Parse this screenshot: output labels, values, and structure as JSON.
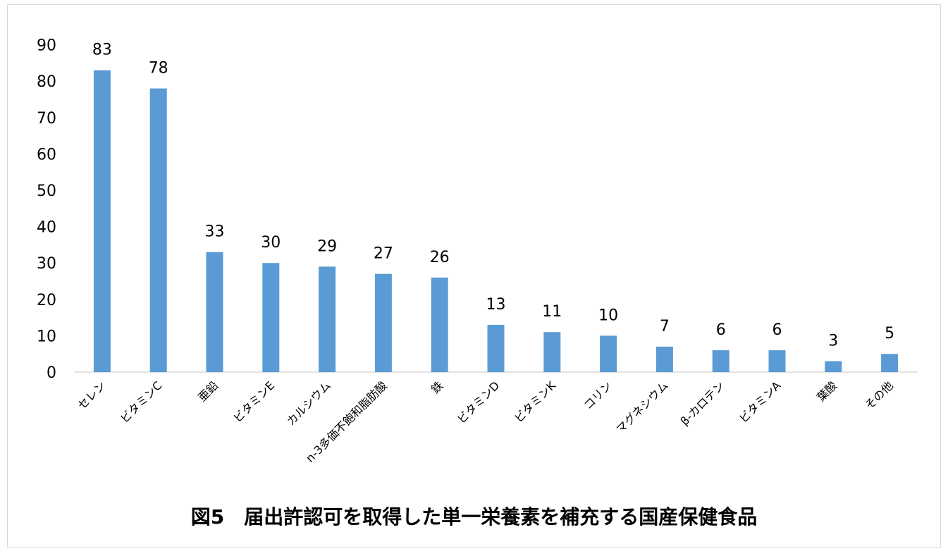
{
  "chart_data": {
    "type": "bar",
    "title": "図5　届出許認可を取得した単一栄養素を補充する国産保健食品",
    "xlabel": "",
    "ylabel": "",
    "ylim": [
      0,
      90
    ],
    "yticks": [
      0,
      10,
      20,
      30,
      40,
      50,
      60,
      70,
      80,
      90
    ],
    "grid": false,
    "legend": "none",
    "bar_color": "#5B9BD5",
    "categories": [
      "セレン",
      "ビタミンC",
      "亜鉛",
      "ビタミンE",
      "カルシウム",
      "n-3多価不飽和脂肪酸",
      "鉄",
      "ビタミンD",
      "ビタミンK",
      "コリン",
      "マグネシウム",
      "β-カロテン",
      "ビタミンA",
      "葉酸",
      "その他"
    ],
    "values": [
      83,
      78,
      33,
      30,
      29,
      27,
      26,
      13,
      11,
      10,
      7,
      6,
      6,
      3,
      5
    ],
    "data_labels": [
      "83",
      "78",
      "33",
      "30",
      "29",
      "27",
      "26",
      "13",
      "11",
      "10",
      "7",
      "6",
      "6",
      "3",
      "5"
    ]
  }
}
